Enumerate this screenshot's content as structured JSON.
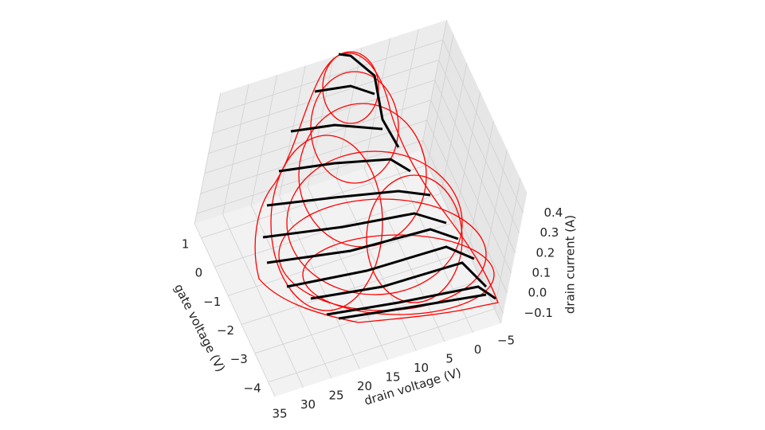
{
  "chart_data": {
    "type": "surface3d",
    "xlabel": "drain voltage (V)",
    "ylabel": "gate voltage (V)",
    "zlabel": "drain current (A)",
    "xlim": [
      -5,
      35
    ],
    "ylim": [
      -4.5,
      1.5
    ],
    "zlim": [
      -0.15,
      0.5
    ],
    "xticks": [
      35,
      30,
      25,
      20,
      15,
      10,
      5,
      0,
      {
        "value": -5,
        "label": "−5"
      }
    ],
    "yticks": [
      1,
      0,
      {
        "value": -1,
        "label": "−1"
      },
      {
        "value": -2,
        "label": "−2"
      },
      {
        "value": -3,
        "label": "−3"
      },
      {
        "value": -4,
        "label": "−4"
      }
    ],
    "zticks": [
      0.4,
      0.3,
      0.2,
      0.1,
      {
        "value": 0,
        "label": "0.0"
      },
      {
        "value": -0.1,
        "label": "−0.1"
      }
    ],
    "color": "#ff0000",
    "line_color": "#000000",
    "grid": true
  }
}
